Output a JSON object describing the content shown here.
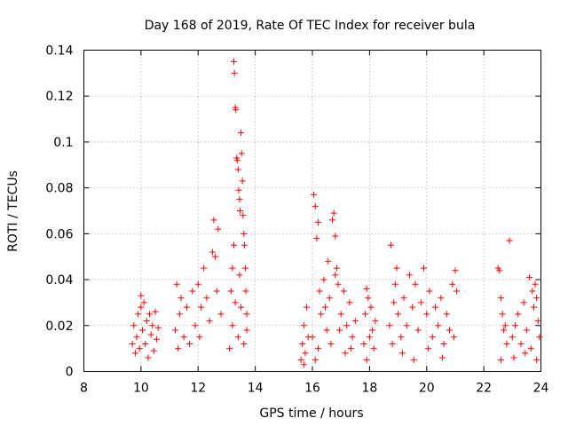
{
  "chart_data": {
    "type": "scatter",
    "title": "Day 168 of 2019, Rate Of TEC Index for receiver bula",
    "xlabel": "GPS time / hours",
    "ylabel": "ROTI / TECUs",
    "xlim": [
      8,
      24
    ],
    "ylim": [
      0,
      0.14
    ],
    "x_ticks": [
      8,
      10,
      12,
      14,
      16,
      18,
      20,
      22,
      24
    ],
    "y_ticks": [
      0,
      0.02,
      0.04,
      0.06,
      0.08,
      0.1,
      0.12,
      0.14
    ],
    "x_tick_labels": [
      "8",
      "10",
      "12",
      "14",
      "16",
      "18",
      "20",
      "22",
      "24"
    ],
    "y_tick_labels": [
      "0",
      "0.02",
      "0.04",
      "0.06",
      "0.08",
      "0.1",
      "0.12",
      "0.14"
    ],
    "grid": true,
    "marker": "+",
    "color": "#ff0000",
    "series": [
      {
        "name": "ROTI",
        "points": [
          [
            9.7,
            0.012
          ],
          [
            9.75,
            0.02
          ],
          [
            9.8,
            0.008
          ],
          [
            9.85,
            0.015
          ],
          [
            9.9,
            0.025
          ],
          [
            9.95,
            0.01
          ],
          [
            10.0,
            0.028
          ],
          [
            10.05,
            0.018
          ],
          [
            10.1,
            0.03
          ],
          [
            10.15,
            0.012
          ],
          [
            10.2,
            0.022
          ],
          [
            10.25,
            0.006
          ],
          [
            10.3,
            0.025
          ],
          [
            10.35,
            0.016
          ],
          [
            10.4,
            0.02
          ],
          [
            10.45,
            0.009
          ],
          [
            10.5,
            0.026
          ],
          [
            10.55,
            0.014
          ],
          [
            10.6,
            0.019
          ],
          [
            10.0,
            0.033
          ],
          [
            11.2,
            0.018
          ],
          [
            11.25,
            0.038
          ],
          [
            11.3,
            0.01
          ],
          [
            11.35,
            0.025
          ],
          [
            11.4,
            0.032
          ],
          [
            11.5,
            0.015
          ],
          [
            11.6,
            0.028
          ],
          [
            11.7,
            0.012
          ],
          [
            11.8,
            0.035
          ],
          [
            11.9,
            0.02
          ],
          [
            12.0,
            0.038
          ],
          [
            12.05,
            0.015
          ],
          [
            12.1,
            0.028
          ],
          [
            12.2,
            0.045
          ],
          [
            12.3,
            0.032
          ],
          [
            12.4,
            0.022
          ],
          [
            12.5,
            0.052
          ],
          [
            12.55,
            0.066
          ],
          [
            12.6,
            0.05
          ],
          [
            12.65,
            0.035
          ],
          [
            12.7,
            0.062
          ],
          [
            12.8,
            0.025
          ],
          [
            13.1,
            0.01
          ],
          [
            13.15,
            0.035
          ],
          [
            13.2,
            0.045
          ],
          [
            13.25,
            0.135
          ],
          [
            13.27,
            0.13
          ],
          [
            13.3,
            0.115
          ],
          [
            13.32,
            0.114
          ],
          [
            13.35,
            0.093
          ],
          [
            13.37,
            0.092
          ],
          [
            13.4,
            0.088
          ],
          [
            13.42,
            0.079
          ],
          [
            13.45,
            0.075
          ],
          [
            13.47,
            0.07
          ],
          [
            13.5,
            0.104
          ],
          [
            13.52,
            0.095
          ],
          [
            13.55,
            0.083
          ],
          [
            13.57,
            0.068
          ],
          [
            13.6,
            0.06
          ],
          [
            13.62,
            0.055
          ],
          [
            13.65,
            0.045
          ],
          [
            13.67,
            0.035
          ],
          [
            13.7,
            0.025
          ],
          [
            13.2,
            0.02
          ],
          [
            13.3,
            0.03
          ],
          [
            13.4,
            0.015
          ],
          [
            13.5,
            0.028
          ],
          [
            13.6,
            0.012
          ],
          [
            13.7,
            0.018
          ],
          [
            13.25,
            0.055
          ],
          [
            13.45,
            0.042
          ],
          [
            15.6,
            0.005
          ],
          [
            15.65,
            0.012
          ],
          [
            15.7,
            0.02
          ],
          [
            15.75,
            0.008
          ],
          [
            15.8,
            0.028
          ],
          [
            15.85,
            0.015
          ],
          [
            15.7,
            0.003
          ],
          [
            16.0,
            0.015
          ],
          [
            16.05,
            0.077
          ],
          [
            16.1,
            0.072
          ],
          [
            16.15,
            0.058
          ],
          [
            16.2,
            0.065
          ],
          [
            16.25,
            0.035
          ],
          [
            16.3,
            0.025
          ],
          [
            16.4,
            0.04
          ],
          [
            16.5,
            0.018
          ],
          [
            16.6,
            0.032
          ],
          [
            16.7,
            0.066
          ],
          [
            16.75,
            0.069
          ],
          [
            16.8,
            0.059
          ],
          [
            16.85,
            0.045
          ],
          [
            16.9,
            0.038
          ],
          [
            17.0,
            0.025
          ],
          [
            17.1,
            0.035
          ],
          [
            17.2,
            0.02
          ],
          [
            17.3,
            0.03
          ],
          [
            17.4,
            0.015
          ],
          [
            17.5,
            0.022
          ],
          [
            16.2,
            0.01
          ],
          [
            16.45,
            0.028
          ],
          [
            16.65,
            0.012
          ],
          [
            16.95,
            0.018
          ],
          [
            17.15,
            0.008
          ],
          [
            17.35,
            0.01
          ],
          [
            16.1,
            0.005
          ],
          [
            16.55,
            0.048
          ],
          [
            16.8,
            0.042
          ],
          [
            17.8,
            0.012
          ],
          [
            17.85,
            0.025
          ],
          [
            17.9,
            0.036
          ],
          [
            17.95,
            0.032
          ],
          [
            18.0,
            0.015
          ],
          [
            18.05,
            0.028
          ],
          [
            18.1,
            0.018
          ],
          [
            18.15,
            0.01
          ],
          [
            18.2,
            0.022
          ],
          [
            17.9,
            0.005
          ],
          [
            18.7,
            0.02
          ],
          [
            18.75,
            0.055
          ],
          [
            18.8,
            0.012
          ],
          [
            18.85,
            0.03
          ],
          [
            18.9,
            0.038
          ],
          [
            18.95,
            0.045
          ],
          [
            19.0,
            0.025
          ],
          [
            19.1,
            0.015
          ],
          [
            19.2,
            0.032
          ],
          [
            19.3,
            0.02
          ],
          [
            19.4,
            0.042
          ],
          [
            19.5,
            0.028
          ],
          [
            19.6,
            0.038
          ],
          [
            19.7,
            0.018
          ],
          [
            19.8,
            0.03
          ],
          [
            19.9,
            0.045
          ],
          [
            20.0,
            0.025
          ],
          [
            20.1,
            0.035
          ],
          [
            20.2,
            0.015
          ],
          [
            20.3,
            0.028
          ],
          [
            20.4,
            0.02
          ],
          [
            20.5,
            0.032
          ],
          [
            20.6,
            0.012
          ],
          [
            20.7,
            0.025
          ],
          [
            20.8,
            0.018
          ],
          [
            20.9,
            0.038
          ],
          [
            21.0,
            0.044
          ],
          [
            21.05,
            0.035
          ],
          [
            19.15,
            0.008
          ],
          [
            19.55,
            0.005
          ],
          [
            20.05,
            0.01
          ],
          [
            20.55,
            0.006
          ],
          [
            20.95,
            0.015
          ],
          [
            22.5,
            0.045
          ],
          [
            22.55,
            0.044
          ],
          [
            22.6,
            0.032
          ],
          [
            22.65,
            0.025
          ],
          [
            22.7,
            0.018
          ],
          [
            22.75,
            0.02
          ],
          [
            22.8,
            0.012
          ],
          [
            22.9,
            0.057
          ],
          [
            23.0,
            0.015
          ],
          [
            23.1,
            0.02
          ],
          [
            23.2,
            0.025
          ],
          [
            23.3,
            0.012
          ],
          [
            23.4,
            0.03
          ],
          [
            23.5,
            0.018
          ],
          [
            23.6,
            0.041
          ],
          [
            23.7,
            0.035
          ],
          [
            23.75,
            0.028
          ],
          [
            23.8,
            0.038
          ],
          [
            23.85,
            0.032
          ],
          [
            23.9,
            0.022
          ],
          [
            23.95,
            0.015
          ],
          [
            22.6,
            0.005
          ],
          [
            23.05,
            0.006
          ],
          [
            23.45,
            0.008
          ],
          [
            23.65,
            0.01
          ],
          [
            23.85,
            0.005
          ]
        ]
      }
    ]
  }
}
